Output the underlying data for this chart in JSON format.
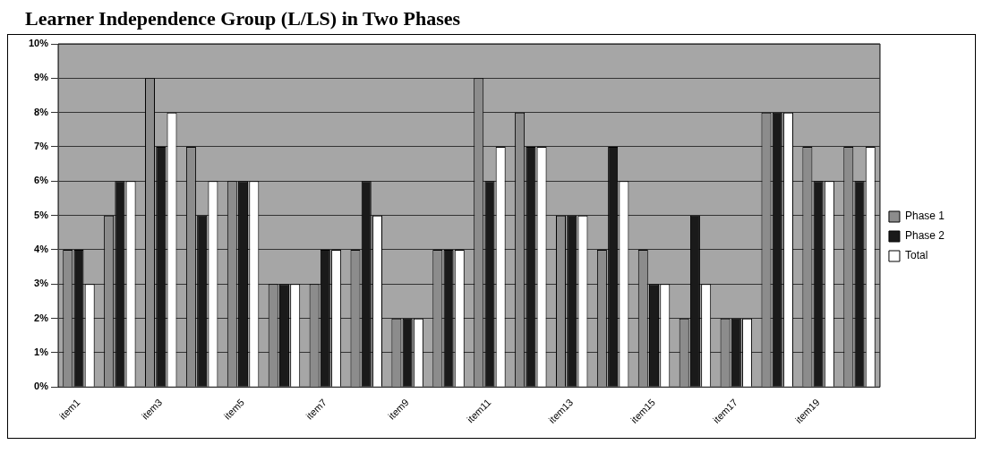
{
  "chart_data": {
    "type": "bar",
    "title": "Learner Independence Group (L/LS) in Two Phases",
    "categories": [
      "item1",
      null,
      "item3",
      null,
      "item5",
      null,
      "item7",
      null,
      "item9",
      null,
      "item11",
      null,
      "item13",
      null,
      "item15",
      null,
      "item17",
      null,
      "item19",
      null
    ],
    "series": [
      {
        "name": "Phase 1",
        "color": "#8c8c8c",
        "values": [
          4,
          5,
          9,
          7,
          6,
          3,
          3,
          4,
          2,
          4,
          9,
          8,
          5,
          4,
          4,
          2,
          2,
          8,
          7,
          7
        ]
      },
      {
        "name": "Phase 2",
        "color": "#1a1a1a",
        "values": [
          4,
          6,
          7,
          5,
          6,
          3,
          4,
          6,
          2,
          4,
          6,
          7,
          5,
          7,
          3,
          5,
          2,
          8,
          6,
          6
        ]
      },
      {
        "name": "Total",
        "color": "#ffffff",
        "values": [
          3,
          6,
          8,
          6,
          6,
          3,
          4,
          5,
          2,
          4,
          7,
          7,
          5,
          6,
          3,
          3,
          2,
          8,
          6,
          7
        ]
      }
    ],
    "ylim": [
      0,
      10
    ],
    "yticks": [
      {
        "value": 0,
        "label": "0%"
      },
      {
        "value": 1,
        "label": "1%"
      },
      {
        "value": 2,
        "label": "2%"
      },
      {
        "value": 3,
        "label": "3%"
      },
      {
        "value": 4,
        "label": "4%"
      },
      {
        "value": 5,
        "label": "5%"
      },
      {
        "value": 6,
        "label": "6%"
      },
      {
        "value": 7,
        "label": "7%"
      },
      {
        "value": 8,
        "label": "8%"
      },
      {
        "value": 9,
        "label": "9%"
      },
      {
        "value": 10,
        "label": "10%"
      }
    ],
    "grid": "y",
    "legend": "right"
  }
}
